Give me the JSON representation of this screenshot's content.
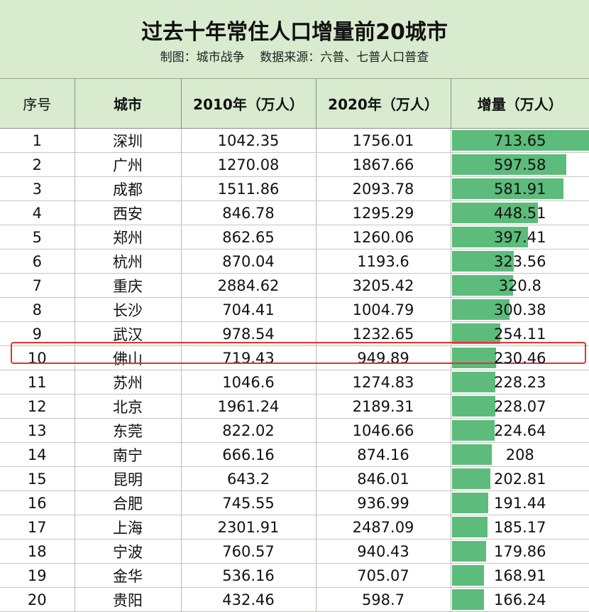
{
  "header": {
    "title": "过去十年常住人口增量前20城市",
    "subtitle": "制图：城市战争    数据来源：六普、七普人口普查"
  },
  "colors": {
    "header_bg": "#d8ebcf",
    "bar": "#5dbb7b",
    "highlight": "#e5322d"
  },
  "chart_data": {
    "type": "table",
    "columns": [
      "序号",
      "城市",
      "2010年（万人）",
      "2020年（万人）",
      "增量（万人）"
    ],
    "rows": [
      {
        "rank": "1",
        "city": "深圳",
        "y2010": "1042.35",
        "y2020": "1756.01",
        "increase": "713.65"
      },
      {
        "rank": "2",
        "city": "广州",
        "y2010": "1270.08",
        "y2020": "1867.66",
        "increase": "597.58"
      },
      {
        "rank": "3",
        "city": "成都",
        "y2010": "1511.86",
        "y2020": "2093.78",
        "increase": "581.91"
      },
      {
        "rank": "4",
        "city": "西安",
        "y2010": "846.78",
        "y2020": "1295.29",
        "increase": "448.51"
      },
      {
        "rank": "5",
        "city": "郑州",
        "y2010": "862.65",
        "y2020": "1260.06",
        "increase": "397.41"
      },
      {
        "rank": "6",
        "city": "杭州",
        "y2010": "870.04",
        "y2020": "1193.6",
        "increase": "323.56"
      },
      {
        "rank": "7",
        "city": "重庆",
        "y2010": "2884.62",
        "y2020": "3205.42",
        "increase": "320.8"
      },
      {
        "rank": "8",
        "city": "长沙",
        "y2010": "704.41",
        "y2020": "1004.79",
        "increase": "300.38"
      },
      {
        "rank": "9",
        "city": "武汉",
        "y2010": "978.54",
        "y2020": "1232.65",
        "increase": "254.11"
      },
      {
        "rank": "10",
        "city": "佛山",
        "y2010": "719.43",
        "y2020": "949.89",
        "increase": "230.46"
      },
      {
        "rank": "11",
        "city": "苏州",
        "y2010": "1046.6",
        "y2020": "1274.83",
        "increase": "228.23"
      },
      {
        "rank": "12",
        "city": "北京",
        "y2010": "1961.24",
        "y2020": "2189.31",
        "increase": "228.07"
      },
      {
        "rank": "13",
        "city": "东莞",
        "y2010": "822.02",
        "y2020": "1046.66",
        "increase": "224.64"
      },
      {
        "rank": "14",
        "city": "南宁",
        "y2010": "666.16",
        "y2020": "874.16",
        "increase": "208"
      },
      {
        "rank": "15",
        "city": "昆明",
        "y2010": "643.2",
        "y2020": "846.01",
        "increase": "202.81"
      },
      {
        "rank": "16",
        "city": "合肥",
        "y2010": "745.55",
        "y2020": "936.99",
        "increase": "191.44"
      },
      {
        "rank": "17",
        "city": "上海",
        "y2010": "2301.91",
        "y2020": "2487.09",
        "increase": "185.17"
      },
      {
        "rank": "18",
        "city": "宁波",
        "y2010": "760.57",
        "y2020": "940.43",
        "increase": "179.86"
      },
      {
        "rank": "19",
        "city": "金华",
        "y2010": "536.16",
        "y2020": "705.07",
        "increase": "168.91"
      },
      {
        "rank": "20",
        "city": "贵阳",
        "y2010": "432.46",
        "y2020": "598.7",
        "increase": "166.24"
      }
    ],
    "highlighted_rank": "10",
    "bar_max": 713.65
  }
}
